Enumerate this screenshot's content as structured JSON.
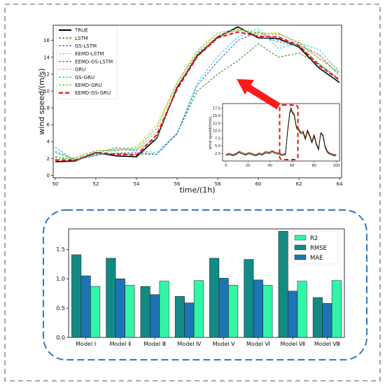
{
  "chart_data": [
    {
      "type": "line",
      "title": "",
      "xlabel": "time/(1h)",
      "ylabel": "wind speed/(m/s)",
      "xlim": [
        49.9,
        64.1
      ],
      "ylim": [
        -0.3,
        17.8
      ],
      "xticks": [
        50,
        52,
        54,
        56,
        58,
        60,
        62,
        64
      ],
      "yticks": [
        0,
        2,
        4,
        6,
        8,
        10,
        12,
        14,
        16
      ],
      "legend_position": "upper-left",
      "x": [
        50,
        51,
        52,
        53,
        54,
        55,
        56,
        57,
        58,
        59,
        60,
        61,
        62,
        63,
        64
      ],
      "series": [
        {
          "name": "TRUE",
          "color": "#000000",
          "dash": "solid",
          "width": 1.6,
          "values": [
            1.6,
            1.7,
            2.7,
            2.3,
            2.2,
            4.4,
            10.4,
            14.2,
            16.4,
            17.6,
            16.3,
            16.2,
            15.2,
            12.7,
            11.0
          ]
        },
        {
          "name": "LSTM",
          "color": "#228b22",
          "dash": "dash",
          "width": 1,
          "values": [
            2.7,
            1.9,
            2.4,
            2.6,
            2.5,
            2.5,
            5.0,
            10.0,
            12.0,
            13.6,
            15.6,
            14.0,
            14.5,
            13.2,
            11.4
          ]
        },
        {
          "name": "GS-LSTM",
          "color": "#3355dd",
          "dash": "dash",
          "width": 1,
          "values": [
            2.2,
            1.8,
            2.5,
            2.6,
            2.7,
            2.5,
            4.9,
            10.7,
            13.5,
            16.0,
            17.0,
            16.0,
            15.4,
            14.3,
            11.8
          ]
        },
        {
          "name": "EEMD-LSTM",
          "color": "#ffb52e",
          "dash": "dash",
          "width": 1,
          "values": [
            1.9,
            2.0,
            2.9,
            3.1,
            3.4,
            6.0,
            11.0,
            14.6,
            16.7,
            17.2,
            16.8,
            16.9,
            15.5,
            13.9,
            12.2
          ]
        },
        {
          "name": "EEMD-GS-LSTM",
          "color": "#20a090",
          "dash": "dash",
          "width": 1,
          "values": [
            3.3,
            1.7,
            2.6,
            3.3,
            3.0,
            4.4,
            10.3,
            14.4,
            16.3,
            17.5,
            16.5,
            15.8,
            15.3,
            13.2,
            11.2
          ]
        },
        {
          "name": "GRU",
          "color": "#ff9966",
          "dash": "dash",
          "width": 1,
          "values": [
            2.1,
            2.1,
            2.9,
            2.9,
            3.0,
            5.2,
            10.7,
            14.5,
            16.5,
            17.2,
            16.7,
            16.7,
            15.8,
            14.2,
            12.5
          ]
        },
        {
          "name": "GS-GRU",
          "color": "#22ccee",
          "dash": "dash",
          "width": 1,
          "values": [
            2.9,
            1.8,
            2.3,
            3.1,
            2.9,
            2.7,
            5.0,
            11.0,
            14.1,
            16.4,
            17.4,
            15.0,
            15.7,
            14.9,
            12.2
          ]
        },
        {
          "name": "EEMD-GRU",
          "color": "#33dd33",
          "dash": "dash",
          "width": 1,
          "values": [
            1.9,
            2.1,
            2.9,
            3.0,
            3.2,
            5.6,
            11.0,
            14.8,
            16.9,
            17.3,
            16.9,
            16.8,
            15.7,
            13.8,
            12.1
          ]
        },
        {
          "name": "EEMD-GS-GRU",
          "color": "#ee1111",
          "dash": "dashbold",
          "width": 2,
          "values": [
            1.8,
            1.8,
            2.7,
            2.5,
            2.4,
            4.8,
            10.2,
            14.1,
            16.3,
            17.0,
            16.5,
            16.4,
            15.4,
            13.0,
            11.3
          ]
        }
      ]
    },
    {
      "type": "line",
      "title": "",
      "xlabel": "",
      "ylabel": "wind speed/(m/s)",
      "xlim": [
        -3,
        103
      ],
      "ylim": [
        0,
        19
      ],
      "xticks": [
        0,
        20,
        40,
        60,
        80,
        100
      ],
      "yticks": [
        2.5,
        5.0,
        7.5,
        10.0,
        12.5,
        15.0,
        17.5
      ],
      "ytick_labels": [
        "2.5",
        "5.0",
        "7.5",
        "10.0",
        "12.5",
        "15.0",
        "17.5"
      ],
      "highlight_window_x": [
        50,
        64
      ],
      "x": [
        0,
        3,
        6,
        9,
        12,
        15,
        18,
        21,
        24,
        27,
        30,
        33,
        36,
        39,
        42,
        45,
        48,
        51,
        54,
        56,
        58,
        59,
        60,
        62,
        64,
        66,
        68,
        70,
        72,
        74,
        76,
        78,
        80,
        82,
        84,
        86,
        88,
        90,
        92,
        94,
        96,
        98,
        100
      ],
      "series": [
        {
          "name": "TRUE",
          "color": "#000000",
          "values": [
            2.0,
            2.3,
            1.9,
            2.2,
            3.0,
            2.4,
            2.1,
            2.6,
            2.2,
            1.8,
            2.4,
            2.1,
            2.9,
            2.6,
            3.2,
            2.6,
            2.4,
            2.0,
            2.2,
            10.4,
            16.4,
            17.6,
            16.3,
            15.2,
            11.0,
            10.4,
            9.2,
            9.6,
            7.3,
            10.0,
            8.2,
            6.2,
            8.4,
            5.6,
            3.8,
            9.4,
            8.4,
            4.6,
            3.0,
            2.4,
            2.2,
            1.8,
            2.0
          ]
        },
        {
          "name": "overlay-red",
          "color": "#ee2222",
          "values": [
            2.3,
            2.6,
            2.2,
            2.5,
            3.3,
            2.8,
            2.4,
            2.9,
            2.5,
            2.1,
            2.7,
            2.4,
            3.2,
            2.9,
            3.5,
            2.9,
            2.7,
            2.3,
            2.6,
            10.0,
            16.0,
            17.0,
            16.6,
            15.5,
            11.4,
            10.8,
            9.6,
            10.0,
            7.7,
            10.3,
            8.6,
            6.6,
            8.8,
            6.0,
            4.2,
            9.1,
            8.8,
            5.0,
            3.3,
            2.7,
            2.5,
            2.1,
            2.3
          ]
        },
        {
          "name": "overlay-green",
          "color": "#33aa44",
          "values": [
            1.8,
            2.0,
            1.7,
            2.0,
            2.7,
            2.2,
            1.9,
            2.3,
            2.0,
            1.6,
            2.2,
            1.9,
            2.6,
            2.3,
            2.9,
            2.3,
            2.1,
            1.8,
            2.0,
            9.6,
            15.6,
            16.8,
            16.0,
            14.8,
            10.6,
            10.0,
            8.9,
            9.2,
            7.0,
            9.6,
            7.9,
            5.9,
            8.0,
            5.3,
            3.5,
            9.0,
            8.1,
            4.3,
            2.7,
            2.2,
            2.0,
            1.6,
            1.8
          ]
        }
      ]
    },
    {
      "type": "bar",
      "title": "",
      "xlabel": "",
      "ylabel": "",
      "ylim": [
        0,
        1.85
      ],
      "yticks": [
        0.0,
        0.5,
        1.0,
        1.5
      ],
      "ytick_labels": [
        "0.0",
        "0.5",
        "1.0",
        "1.5"
      ],
      "legend_position": "upper-right",
      "categories": [
        "Model  Ⅰ",
        "Model  Ⅱ",
        "Model  Ⅲ",
        "Model  Ⅳ",
        "Model  Ⅴ",
        "Model  Ⅵ",
        "Model  Ⅶ",
        "Model  Ⅷ"
      ],
      "series": [
        {
          "name": "RMSE",
          "color": "#138a84",
          "values": [
            1.41,
            1.35,
            0.87,
            0.7,
            1.35,
            1.33,
            1.81,
            0.68
          ]
        },
        {
          "name": "MAE",
          "color": "#1d74b5",
          "values": [
            1.05,
            1.0,
            0.73,
            0.59,
            1.01,
            0.98,
            0.79,
            0.58
          ]
        },
        {
          "name": "R2",
          "color": "#32f5a6",
          "values": [
            0.87,
            0.89,
            0.96,
            0.97,
            0.89,
            0.89,
            0.96,
            0.97
          ]
        }
      ],
      "legend_order": [
        "R2",
        "RMSE",
        "MAE"
      ]
    }
  ],
  "colors": {
    "outer_border": "#777777",
    "rounded_border": "#2f78c8",
    "arrow": "#ff1a1a",
    "highlight_box": "#ee1111"
  }
}
